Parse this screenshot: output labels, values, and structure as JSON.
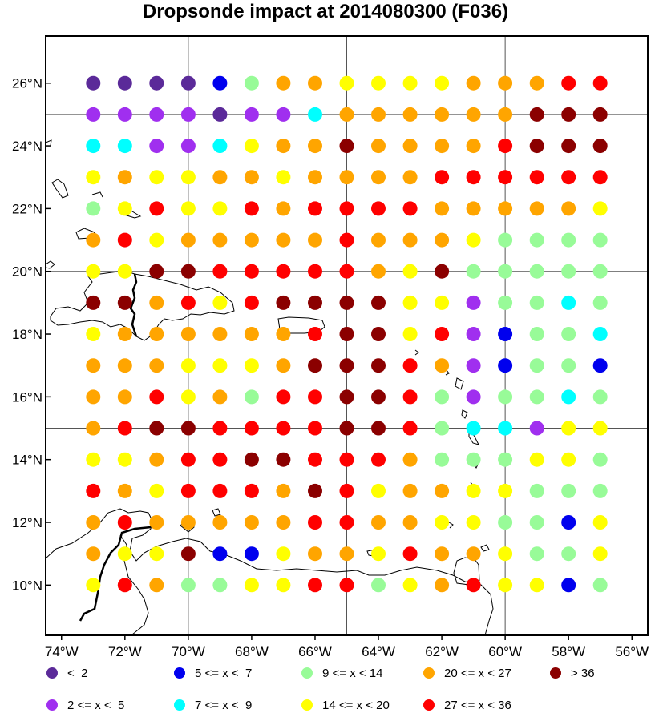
{
  "title": "Dropsonde impact at 2014080300 (F036)",
  "x_ticks": [
    "74°W",
    "72°W",
    "70°W",
    "68°W",
    "66°W",
    "64°W",
    "62°W",
    "60°W",
    "58°W",
    "56°W"
  ],
  "y_ticks": [
    "10°N",
    "12°N",
    "14°N",
    "16°N",
    "18°N",
    "20°N",
    "22°N",
    "24°N",
    "26°N"
  ],
  "legend": [
    {
      "key": "a",
      "label": "<  2",
      "color": "#5b2a99"
    },
    {
      "key": "b",
      "label": "2 <= x <  5",
      "color": "#a02fef"
    },
    {
      "key": "c",
      "label": "5 <= x <  7",
      "color": "#0000ee"
    },
    {
      "key": "d",
      "label": "7 <= x <  9",
      "color": "#00ffff"
    },
    {
      "key": "e",
      "label": "9 <= x < 14",
      "color": "#98fb98"
    },
    {
      "key": "f",
      "label": "14 <= x < 20",
      "color": "#ffff00"
    },
    {
      "key": "g",
      "label": "20 <= x < 27",
      "color": "#ffa500"
    },
    {
      "key": "h",
      "label": "27 <= x < 36",
      "color": "#ff0000"
    },
    {
      "key": "i",
      "label": "> 36",
      "color": "#8b0000"
    }
  ],
  "chart_data": {
    "type": "scatter",
    "title": "Dropsonde impact at 2014080300 (F036)",
    "xlim": [
      -74.5,
      -55.5
    ],
    "ylim": [
      8.4,
      27.5
    ],
    "grid_lon": [
      -70,
      -65,
      -60
    ],
    "grid_lat": [
      15,
      20,
      25
    ],
    "lons": [
      -73,
      -72,
      -71,
      -70,
      -69,
      -68,
      -67,
      -66,
      -65,
      -64,
      -63,
      -62,
      -61,
      -60,
      -59,
      -58,
      -57
    ],
    "lats": [
      26,
      25,
      24,
      23,
      22,
      21,
      20,
      19,
      18,
      17,
      16,
      15,
      14,
      13,
      12,
      11,
      10
    ],
    "rows": [
      "aaaaceggffffggghh",
      "bbbbabbdggggggiii",
      "ddbbdfggigggghiii",
      "fgffggfgggghhhhhh",
      "efhffhghhhhgggggf",
      "ghfggggghgggfeeee",
      "ffiihhhhhgfieeeee",
      "iighfhiiiiffbeede",
      "fgggggghiifhbceed",
      "gggfffgiiihgbceec",
      "gghfgehhiihebeede",
      "ghiihhhhiiheddbff",
      "ffghhiihhhgeeeffe",
      "hgfhhhgihfggffeee",
      "ghggggghhggffeecf",
      "gfficcfggfhggfeef",
      "fhgeeffhhefghffce"
    ]
  }
}
